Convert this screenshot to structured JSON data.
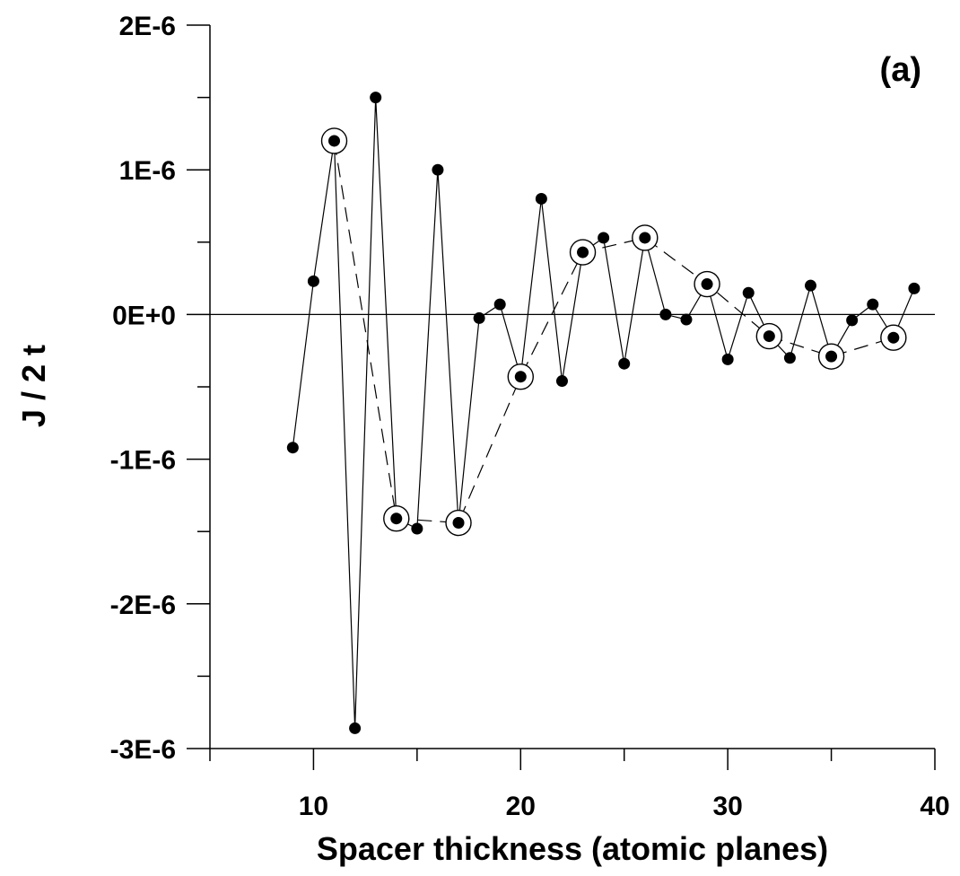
{
  "chart_data": {
    "type": "line",
    "panel_label": "(a)",
    "xlabel": "Spacer thickness (atomic planes)",
    "ylabel": "J / 2 t",
    "xlim": [
      5,
      40
    ],
    "ylim": [
      -3e-06,
      2e-06
    ],
    "x_ticks": [
      10,
      20,
      30,
      40
    ],
    "x_tick_labels": [
      "10",
      "20",
      "30",
      "40"
    ],
    "x_minor_ticks": [
      5,
      15,
      25,
      35
    ],
    "y_ticks": [
      -3e-06,
      -2e-06,
      -1e-06,
      0,
      1e-06,
      2e-06
    ],
    "y_tick_labels": [
      "-3E-6",
      "-2E-6",
      "-1E-6",
      "0E+0",
      "1E-6",
      "2E-6"
    ],
    "y_minor_ticks": [
      -2.5e-06,
      -1.5e-06,
      -5e-07,
      5e-07,
      1.5e-06
    ],
    "zero_line": true,
    "series": [
      {
        "style": "solid-line-filled-circles",
        "color": "#000000",
        "x": [
          9,
          10,
          11,
          12,
          13,
          14,
          15,
          16,
          17,
          18,
          19,
          20,
          21,
          22,
          23,
          24,
          25,
          26,
          27,
          28,
          29,
          30,
          31,
          32,
          33,
          34,
          35,
          36,
          37,
          38,
          39
        ],
        "y": [
          -9.2e-07,
          2.3e-07,
          1.2e-06,
          -2.86e-06,
          1.5e-06,
          -1.41e-06,
          -1.48e-06,
          1e-06,
          -1.44e-06,
          -2.5e-08,
          7e-08,
          -4.3e-07,
          8e-07,
          -4.6e-07,
          4.3e-07,
          5.3e-07,
          -3.4e-07,
          5.3e-07,
          0.0,
          -3.5e-08,
          2.1e-07,
          -3.1e-07,
          1.5e-07,
          -1.5e-07,
          -3e-07,
          2e-07,
          -2.9e-07,
          -4e-08,
          7e-08,
          -1.6e-07,
          1.8e-07
        ]
      },
      {
        "style": "dashed-line-open-circles",
        "color": "#000000",
        "x": [
          11,
          14,
          17,
          20,
          23,
          26,
          29,
          32,
          35,
          38
        ],
        "y": [
          1.2e-06,
          -1.41e-06,
          -1.44e-06,
          -4.3e-07,
          4.3e-07,
          5.3e-07,
          2.1e-07,
          -1.5e-07,
          -2.9e-07,
          -1.6e-07
        ]
      }
    ]
  }
}
